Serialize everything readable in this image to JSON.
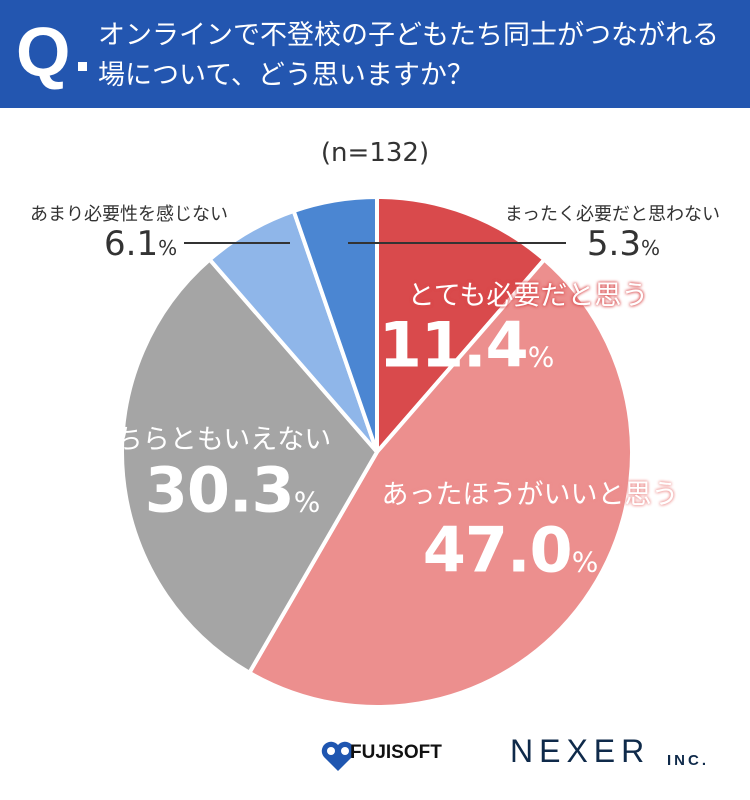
{
  "header": {
    "q_mark": "Q",
    "question": "オンラインで不登校の子どもたち同士がつながれる場について、どう思いますか？"
  },
  "chart_data": {
    "type": "pie",
    "subtitle": "(n=132)",
    "unit": "%",
    "start": "top, clockwise",
    "slices": [
      {
        "label": "とても必要だと思う",
        "value": 11.4,
        "display": "11.4",
        "color": "#d94a4c"
      },
      {
        "label": "あったほうがいいと思う",
        "value": 47.0,
        "display": "47.0",
        "color": "#ec8f8e"
      },
      {
        "label": "どちらともいえない",
        "value": 30.3,
        "display": "30.3",
        "color": "#a5a5a5"
      },
      {
        "label": "あまり必要性を感じない",
        "value": 6.1,
        "display": "6.1",
        "color": "#8fb6e9"
      },
      {
        "label": "まったく必要だと思わない",
        "value": 5.3,
        "display": "5.3",
        "color": "#4b86d2"
      }
    ]
  },
  "logos": {
    "fujisoft": "FUJISOFT",
    "nexer": "NEXER",
    "inc": "INC."
  },
  "colors": {
    "header": "#2356b0"
  }
}
